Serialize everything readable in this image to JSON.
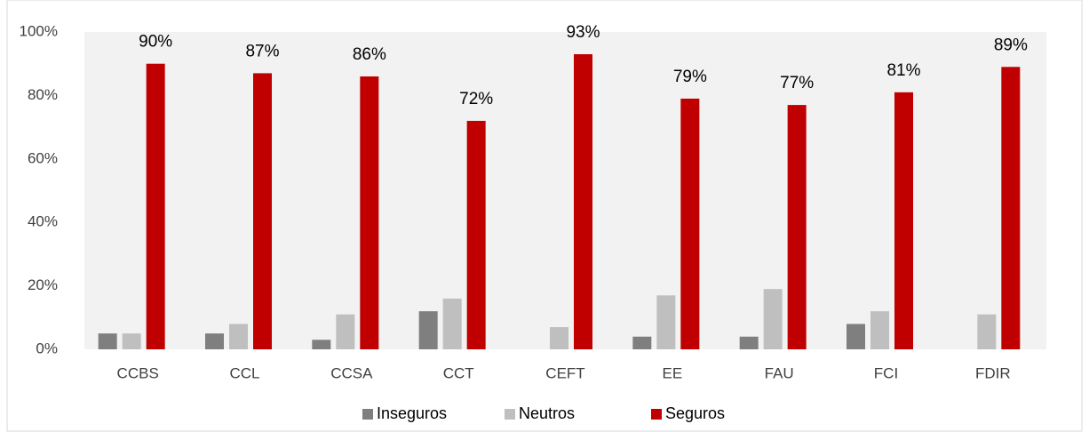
{
  "chart_data": {
    "type": "bar",
    "categories": [
      "CCBS",
      "CCL",
      "CCSA",
      "CCT",
      "CEFT",
      "EE",
      "FAU",
      "FCI",
      "FDIR"
    ],
    "series": [
      {
        "name": "Inseguros",
        "color": "#7f7f7f",
        "values": [
          5,
          5,
          3,
          12,
          0,
          4,
          4,
          8,
          0
        ]
      },
      {
        "name": "Neutros",
        "color": "#bfbfbf",
        "values": [
          5,
          8,
          11,
          16,
          7,
          17,
          19,
          12,
          11
        ]
      },
      {
        "name": "Seguros",
        "color": "#c00000",
        "values": [
          90,
          87,
          86,
          72,
          93,
          79,
          77,
          81,
          89
        ],
        "value_labels": [
          "90%",
          "87%",
          "86%",
          "72%",
          "93%",
          "79%",
          "77%",
          "81%",
          "89%"
        ]
      }
    ],
    "ylim": [
      0,
      100
    ],
    "yticks": [
      {
        "value": 0,
        "label": "0%"
      },
      {
        "value": 20,
        "label": "20%"
      },
      {
        "value": 40,
        "label": "40%"
      },
      {
        "value": 60,
        "label": "60%"
      },
      {
        "value": 80,
        "label": "80%"
      },
      {
        "value": 100,
        "label": "100%"
      }
    ],
    "grid": false,
    "legend": "bottom"
  }
}
